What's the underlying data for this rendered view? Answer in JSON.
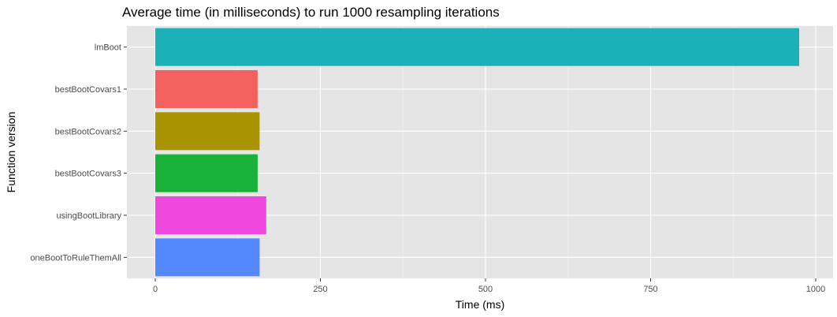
{
  "chart_data": {
    "type": "bar",
    "orientation": "horizontal",
    "title": "Average time (in milliseconds) to run 1000 resampling iterations",
    "xlabel": "Time (ms)",
    "ylabel": "Function version",
    "categories": [
      "lmBoot",
      "bestBootCovars1",
      "bestBootCovars2",
      "bestBootCovars3",
      "usingBootLibrary",
      "oneBootToRuleThemAll"
    ],
    "values": [
      975,
      155,
      158,
      155,
      168,
      158
    ],
    "colors": [
      "#1AB2B8",
      "#F3615F",
      "#A99300",
      "#1BB23A",
      "#EF48DE",
      "#5488FF"
    ],
    "xlim": [
      -45,
      1022
    ],
    "xticks": [
      0,
      250,
      500,
      750,
      1000
    ],
    "xtick_labels": [
      "0",
      "250",
      "500",
      "750",
      "1000"
    ],
    "grid": true,
    "legend": "none",
    "panel_background": "#E5E5E5"
  }
}
